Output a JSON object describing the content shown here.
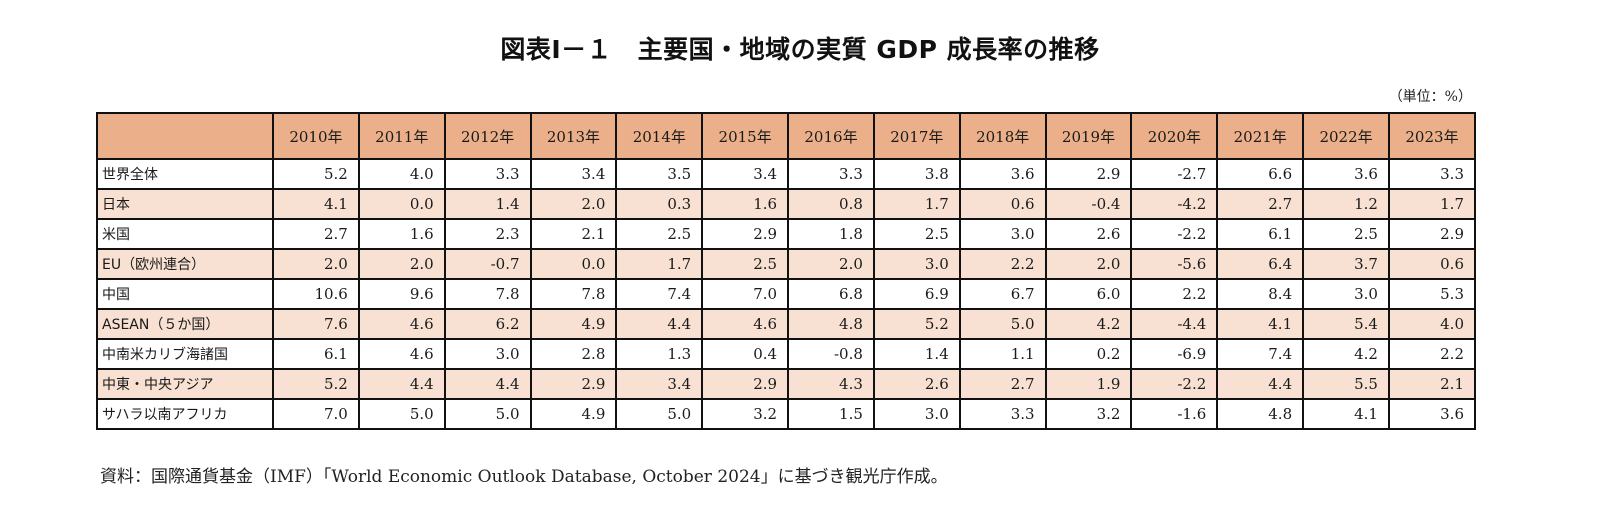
{
  "title": "図表Ⅰ－１　主要国・地域の実質 GDP 成長率の推移",
  "unit_label": "（単位：%）",
  "colors": {
    "header_bg": "#ebb08a",
    "stripe_bg": "#f8e1d2",
    "border": "#111111"
  },
  "table": {
    "corner": "",
    "years": [
      "2010年",
      "2011年",
      "2012年",
      "2013年",
      "2014年",
      "2015年",
      "2016年",
      "2017年",
      "2018年",
      "2019年",
      "2020年",
      "2021年",
      "2022年",
      "2023年"
    ],
    "rows": [
      {
        "region": "世界全体",
        "values": [
          "5.2",
          "4.0",
          "3.3",
          "3.4",
          "3.5",
          "3.4",
          "3.3",
          "3.8",
          "3.6",
          "2.9",
          "-2.7",
          "6.6",
          "3.6",
          "3.3"
        ]
      },
      {
        "region": "日本",
        "values": [
          "4.1",
          "0.0",
          "1.4",
          "2.0",
          "0.3",
          "1.6",
          "0.8",
          "1.7",
          "0.6",
          "-0.4",
          "-4.2",
          "2.7",
          "1.2",
          "1.7"
        ]
      },
      {
        "region": "米国",
        "values": [
          "2.7",
          "1.6",
          "2.3",
          "2.1",
          "2.5",
          "2.9",
          "1.8",
          "2.5",
          "3.0",
          "2.6",
          "-2.2",
          "6.1",
          "2.5",
          "2.9"
        ]
      },
      {
        "region": "EU（欧州連合）",
        "values": [
          "2.0",
          "2.0",
          "-0.7",
          "0.0",
          "1.7",
          "2.5",
          "2.0",
          "3.0",
          "2.2",
          "2.0",
          "-5.6",
          "6.4",
          "3.7",
          "0.6"
        ]
      },
      {
        "region": "中国",
        "values": [
          "10.6",
          "9.6",
          "7.8",
          "7.8",
          "7.4",
          "7.0",
          "6.8",
          "6.9",
          "6.7",
          "6.0",
          "2.2",
          "8.4",
          "3.0",
          "5.3"
        ]
      },
      {
        "region": "ASEAN（５か国）",
        "values": [
          "7.6",
          "4.6",
          "6.2",
          "4.9",
          "4.4",
          "4.6",
          "4.8",
          "5.2",
          "5.0",
          "4.2",
          "-4.4",
          "4.1",
          "5.4",
          "4.0"
        ]
      },
      {
        "region": "中南米カリブ海諸国",
        "values": [
          "6.1",
          "4.6",
          "3.0",
          "2.8",
          "1.3",
          "0.4",
          "-0.8",
          "1.4",
          "1.1",
          "0.2",
          "-6.9",
          "7.4",
          "4.2",
          "2.2"
        ]
      },
      {
        "region": "中東・中央アジア",
        "values": [
          "5.2",
          "4.4",
          "4.4",
          "2.9",
          "3.4",
          "2.9",
          "4.3",
          "2.6",
          "2.7",
          "1.9",
          "-2.2",
          "4.4",
          "5.5",
          "2.1"
        ]
      },
      {
        "region": "サハラ以南アフリカ",
        "values": [
          "7.0",
          "5.0",
          "5.0",
          "4.9",
          "5.0",
          "3.2",
          "1.5",
          "3.0",
          "3.3",
          "3.2",
          "-1.6",
          "4.8",
          "4.1",
          "3.6"
        ]
      }
    ]
  },
  "source": "資料：国際通貨基金（IMF）「World Economic Outlook Database, October 2024」に基づき観光庁作成。"
}
